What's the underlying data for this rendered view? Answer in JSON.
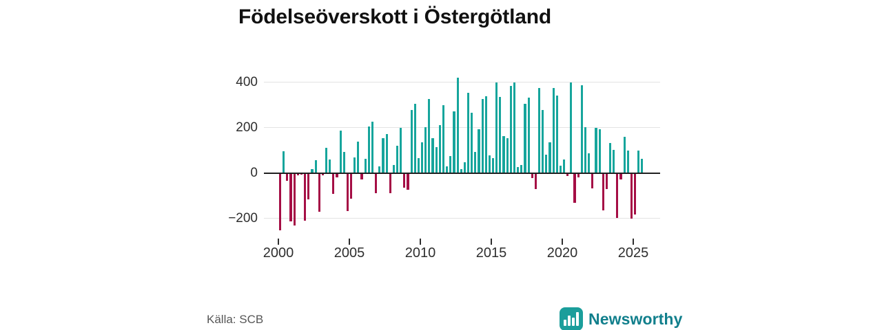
{
  "title": "Födelseöverskott i Östergötland",
  "source": "Källa: SCB",
  "brand": {
    "name": "Newsworthy"
  },
  "colors": {
    "positive": "#16a59c",
    "negative": "#a50e45",
    "zero_axis": "#1f1f1f",
    "grid": "#e3e3e3",
    "tick_text": "#2e2e2e",
    "source_text": "#565656",
    "brand_teal": "#117f8c",
    "brand_icon_bg": "#1b9e9b"
  },
  "chart_data": {
    "type": "bar",
    "title": "Födelseöverskott i Östergötland",
    "frequency": "quarterly",
    "start": "2000Q1",
    "end": "2025Q3",
    "xlabel": "",
    "ylabel": "",
    "grid": true,
    "legend": false,
    "ylim": [
      -285,
      460
    ],
    "y_ticks": [
      400,
      200,
      0,
      -200
    ],
    "x_ticks": [
      2000,
      2005,
      2010,
      2015,
      2020,
      2025
    ],
    "values": [
      -253,
      95,
      -36,
      -213,
      -233,
      -10,
      -8,
      -210,
      -117,
      17,
      55,
      -172,
      -12,
      110,
      60,
      -92,
      -20,
      185,
      91,
      -167,
      -115,
      67,
      139,
      -30,
      61,
      205,
      227,
      -88,
      30,
      152,
      170,
      -88,
      36,
      121,
      200,
      -64,
      -73,
      276,
      306,
      64,
      136,
      203,
      327,
      152,
      115,
      212,
      300,
      30,
      73,
      270,
      421,
      18,
      48,
      352,
      264,
      91,
      191,
      327,
      339,
      76,
      65,
      400,
      336,
      161,
      152,
      382,
      397,
      27,
      35,
      306,
      333,
      -24,
      -70,
      373,
      276,
      79,
      136,
      373,
      342,
      33,
      58,
      -15,
      397,
      -133,
      -20,
      385,
      203,
      85,
      -67,
      197,
      191,
      -164,
      -70,
      133,
      103,
      -197,
      -30,
      158,
      97,
      -203,
      -182,
      100,
      61
    ]
  }
}
